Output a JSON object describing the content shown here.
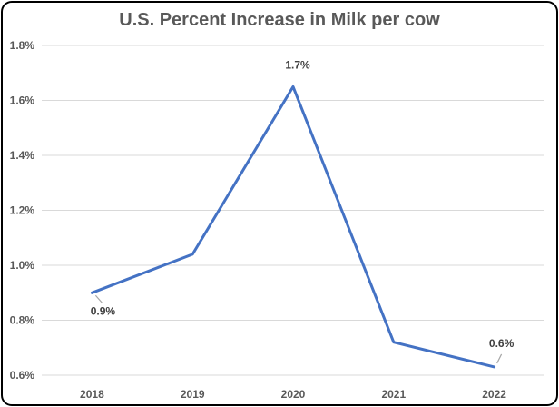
{
  "chart_data": {
    "type": "line",
    "title": "U.S. Percent Increase in Milk per cow",
    "xlabel": "",
    "ylabel": "",
    "categories": [
      "2018",
      "2019",
      "2020",
      "2021",
      "2022"
    ],
    "series": [
      {
        "values": [
          0.9,
          1.04,
          1.65,
          0.72,
          0.63
        ],
        "data_labels": [
          "0.9%",
          "",
          "1.7%",
          "",
          "0.6%"
        ]
      }
    ],
    "ylim": [
      0.6,
      1.8
    ],
    "yticks": [
      0.6,
      0.8,
      1.0,
      1.2,
      1.4,
      1.6,
      1.8
    ],
    "ytick_labels": [
      "0.6%",
      "0.8%",
      "1.0%",
      "1.2%",
      "1.4%",
      "1.6%",
      "1.8%"
    ],
    "grid": true,
    "legend": "none",
    "colors": {
      "line": "#4472C4",
      "grid": "#D9D9D9",
      "text": "#595959",
      "label": "#404040",
      "leader": "#A6A6A6"
    }
  }
}
